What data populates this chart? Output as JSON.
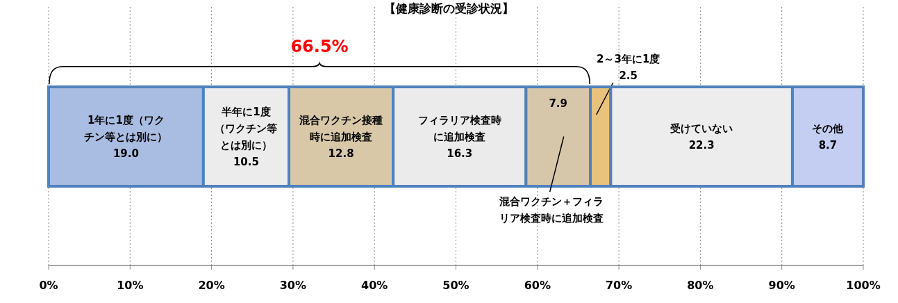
{
  "chart_data": {
    "type": "bar",
    "orientation": "horizontal",
    "stacked": true,
    "title": "【健康診断の受診状況】",
    "categories": [
      null
    ],
    "series": [
      {
        "name": "1年に1度（ワクチン等とは別に）",
        "color": "#a9bde3",
        "values": [
          19.0
        ],
        "value_labels": [
          "19.0"
        ]
      },
      {
        "name": "半年に1度（ワクチン等とは別に）",
        "color": "#ececec",
        "values": [
          10.5
        ],
        "value_labels": [
          "10.5"
        ]
      },
      {
        "name": "混合ワクチン接種時に追加検査",
        "color": "#d8c8a8",
        "values": [
          12.8
        ],
        "value_labels": [
          "12.8"
        ]
      },
      {
        "name": "フィラリア検査時に追加検査",
        "color": "#ebebeb",
        "values": [
          16.3
        ],
        "value_labels": [
          "16.3"
        ]
      },
      {
        "name": "混合ワクチン＋フィラリア検査時に追加検査",
        "color": "#d6c7aa",
        "values": [
          7.9
        ],
        "value_labels": [
          "7.9"
        ]
      },
      {
        "name": "2～3年に1度",
        "color": "#e9c27c",
        "values": [
          2.5
        ],
        "value_labels": [
          "2.5"
        ]
      },
      {
        "name": "受けていない",
        "color": "#ededed",
        "values": [
          22.3
        ],
        "value_labels": [
          "22.3"
        ]
      },
      {
        "name": "その他",
        "color": "#c4cdf2",
        "values": [
          8.7
        ],
        "value_labels": [
          "8.7"
        ]
      }
    ],
    "annotations": [
      "66.5%"
    ],
    "xlim": [
      0,
      100
    ],
    "xticks": [
      {
        "value": 0,
        "label": "0%"
      },
      {
        "value": 10,
        "label": "10%"
      },
      {
        "value": 20,
        "label": "20%"
      },
      {
        "value": 30,
        "label": "30%"
      },
      {
        "value": 40,
        "label": "40%"
      },
      {
        "value": 50,
        "label": "50%"
      },
      {
        "value": 60,
        "label": "60%"
      },
      {
        "value": 70,
        "label": "70%"
      },
      {
        "value": 80,
        "label": "80%"
      },
      {
        "value": 90,
        "label": "90%"
      },
      {
        "value": 100,
        "label": "100%"
      }
    ],
    "grid": "x",
    "legend": false
  }
}
